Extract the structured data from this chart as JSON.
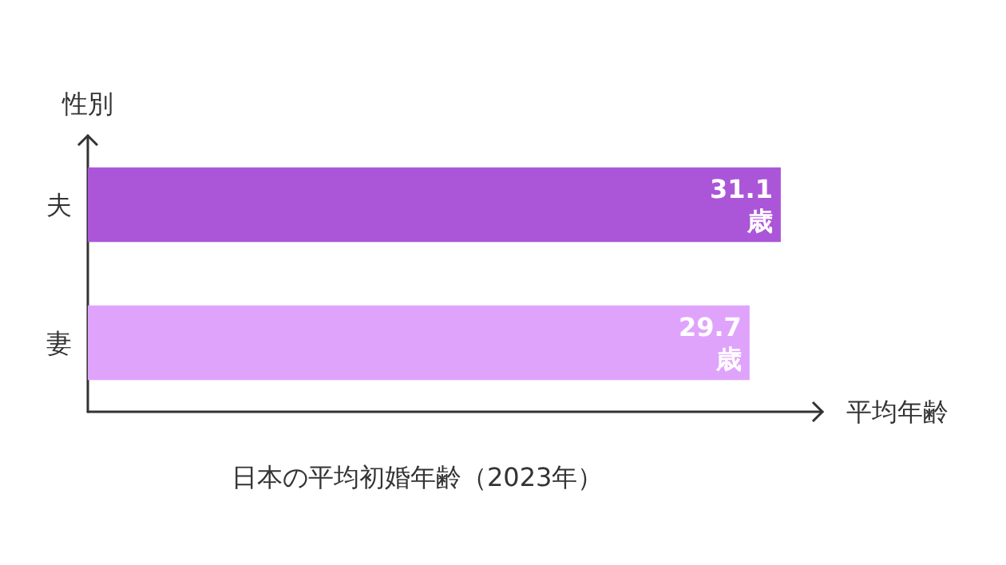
{
  "chart_data": {
    "type": "bar",
    "orientation": "horizontal",
    "title": "日本の平均初婚年齢（2023年）",
    "xlabel": "平均年齢",
    "ylabel": "性別",
    "categories": [
      "夫",
      "妻"
    ],
    "values": [
      31.1,
      29.7
    ],
    "colors": [
      "#ab56d8",
      "#e0a3fc"
    ],
    "value_labels": [
      "31.1\n歳",
      "29.7\n歳"
    ],
    "tick_labels": "y",
    "grid": false
  }
}
